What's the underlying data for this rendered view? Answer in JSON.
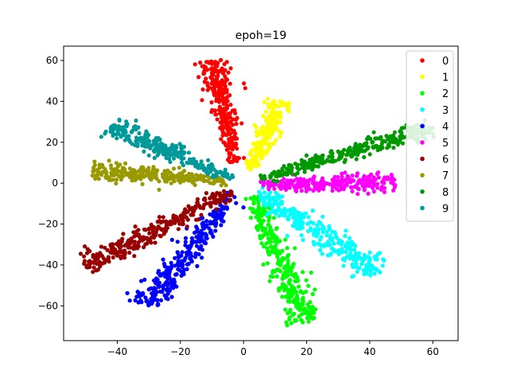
{
  "chart_data": {
    "type": "scatter",
    "title": "epoh=19",
    "xlabel": "",
    "ylabel": "",
    "xlim": [
      -57,
      68
    ],
    "ylim": [
      -77,
      67
    ],
    "xticks": [
      -40,
      -20,
      0,
      20,
      40,
      60
    ],
    "yticks": [
      60,
      40,
      20,
      0,
      -20,
      -40,
      -60
    ],
    "xtick_labels": [
      "−40",
      "−20",
      "0",
      "20",
      "40",
      "60"
    ],
    "ytick_labels": [
      "60",
      "40",
      "20",
      "0",
      "−20",
      "−40",
      "−60"
    ],
    "grid": false,
    "legend_position": "top-right",
    "series": [
      {
        "name": "0",
        "color": "#ff0000",
        "start": [
          -3,
          10
        ],
        "end": [
          -10,
          60
        ],
        "width": 2.0,
        "count": 280
      },
      {
        "name": "1",
        "color": "#ffff00",
        "start": [
          2,
          6
        ],
        "end": [
          12,
          40
        ],
        "width": 1.8,
        "count": 220
      },
      {
        "name": "2",
        "color": "#00ff00",
        "start": [
          3,
          -6
        ],
        "end": [
          20,
          -68
        ],
        "width": 2.5,
        "count": 300
      },
      {
        "name": "3",
        "color": "#00ffff",
        "start": [
          4,
          -4
        ],
        "end": [
          43,
          -44
        ],
        "width": 2.5,
        "count": 300
      },
      {
        "name": "4",
        "color": "#0000ff",
        "start": [
          -3,
          -5
        ],
        "end": [
          -31,
          -60
        ],
        "width": 2.6,
        "count": 300
      },
      {
        "name": "5",
        "color": "#ff00ff",
        "start": [
          5,
          -1
        ],
        "end": [
          48,
          1
        ],
        "width": 2.0,
        "count": 260
      },
      {
        "name": "6",
        "color": "#990000",
        "start": [
          -4,
          -4
        ],
        "end": [
          -50,
          -41
        ],
        "width": 2.2,
        "count": 300
      },
      {
        "name": "7",
        "color": "#999900",
        "start": [
          -5,
          1
        ],
        "end": [
          -48,
          6
        ],
        "width": 2.0,
        "count": 260
      },
      {
        "name": "8",
        "color": "#009900",
        "start": [
          5,
          2
        ],
        "end": [
          60,
          27
        ],
        "width": 2.0,
        "count": 300
      },
      {
        "name": "9",
        "color": "#009999",
        "start": [
          -3,
          2
        ],
        "end": [
          -42,
          28
        ],
        "width": 2.0,
        "count": 260
      }
    ]
  }
}
